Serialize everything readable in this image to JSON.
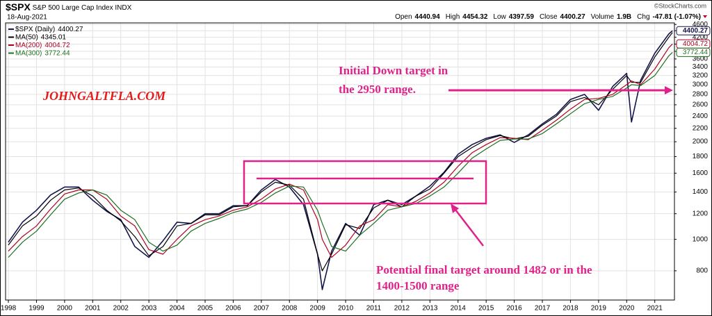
{
  "header": {
    "symbol": "$SPX",
    "name": "S&P 500 Large Cap Index",
    "exchange": "INDX",
    "date": "18-Aug-2021",
    "source": "©StockCharts.com",
    "quote": [
      {
        "label": "Open",
        "value": 4440.94
      },
      {
        "label": "High",
        "value": 4454.32
      },
      {
        "label": "Low",
        "value": 4397.59
      },
      {
        "label": "Close",
        "value": 4400.27
      },
      {
        "label": "Volume",
        "value": "1.9B"
      },
      {
        "label": "Chg",
        "value": "-47.81 (-1.07%)"
      }
    ]
  },
  "chart_data": {
    "type": "line",
    "ylog": true,
    "grid": true,
    "x": [
      1998,
      1998.5,
      1999,
      1999.5,
      2000,
      2000.5,
      2001,
      2001.5,
      2002,
      2002.5,
      2003,
      2003.5,
      2004,
      2004.5,
      2005,
      2005.5,
      2006,
      2006.5,
      2007,
      2007.5,
      2008,
      2008.5,
      2009,
      2009.17,
      2009.5,
      2010,
      2010.5,
      2011,
      2011.5,
      2012,
      2012.5,
      2013,
      2013.5,
      2014,
      2014.5,
      2015,
      2015.5,
      2016,
      2016.5,
      2017,
      2017.5,
      2018,
      2018.5,
      2019,
      2019.5,
      2020,
      2020.17,
      2020.5,
      2021,
      2021.5,
      2021.63
    ],
    "series": [
      {
        "name": "$SPX (Daily)",
        "color": "#14144e",
        "values": [
          980,
          1130,
          1230,
          1370,
          1450,
          1450,
          1320,
          1220,
          1150,
          950,
          880,
          990,
          1130,
          1120,
          1200,
          1200,
          1270,
          1270,
          1420,
          1530,
          1450,
          1280,
          900,
          700,
          920,
          1120,
          1030,
          1280,
          1320,
          1280,
          1360,
          1460,
          1610,
          1830,
          1960,
          2050,
          2100,
          1990,
          2100,
          2270,
          2430,
          2700,
          2800,
          2500,
          2960,
          3250,
          2300,
          3100,
          3750,
          4300,
          4400.27
        ]
      },
      {
        "name": "MA(50)",
        "color": "#000000",
        "values": [
          960,
          1100,
          1180,
          1320,
          1420,
          1440,
          1360,
          1230,
          1140,
          1020,
          890,
          950,
          1100,
          1120,
          1190,
          1190,
          1260,
          1270,
          1400,
          1500,
          1470,
          1330,
          900,
          800,
          900,
          1110,
          1080,
          1250,
          1320,
          1260,
          1360,
          1430,
          1600,
          1800,
          1920,
          2030,
          2090,
          2040,
          2080,
          2250,
          2400,
          2660,
          2740,
          2600,
          2900,
          3200,
          3050,
          3050,
          3650,
          4200,
          4345.01
        ]
      },
      {
        "name": "MA(200)",
        "color": "#b00020",
        "values": [
          920,
          1020,
          1100,
          1240,
          1380,
          1420,
          1420,
          1330,
          1180,
          1100,
          930,
          900,
          1000,
          1100,
          1150,
          1180,
          1230,
          1260,
          1330,
          1430,
          1480,
          1420,
          1150,
          1000,
          880,
          960,
          1100,
          1150,
          1280,
          1260,
          1310,
          1390,
          1500,
          1680,
          1850,
          1960,
          2060,
          2050,
          2030,
          2170,
          2330,
          2520,
          2700,
          2720,
          2800,
          3000,
          3080,
          3000,
          3350,
          3900,
          4004.72
        ]
      },
      {
        "name": "MA(300)",
        "color": "#1f6e1f",
        "values": [
          880,
          980,
          1060,
          1190,
          1330,
          1390,
          1420,
          1370,
          1230,
          1150,
          980,
          920,
          960,
          1060,
          1120,
          1160,
          1210,
          1240,
          1300,
          1390,
          1460,
          1450,
          1230,
          1120,
          950,
          920,
          1030,
          1120,
          1230,
          1260,
          1290,
          1360,
          1450,
          1600,
          1780,
          1900,
          2020,
          2040,
          2040,
          2120,
          2270,
          2440,
          2620,
          2700,
          2760,
          2930,
          3000,
          2980,
          3200,
          3680,
          3772.44
        ]
      }
    ],
    "xlim": [
      1997.9,
      2021.7
    ],
    "xticks": [
      1998,
      1999,
      2000,
      2001,
      2002,
      2003,
      2004,
      2005,
      2006,
      2007,
      2008,
      2009,
      2010,
      2011,
      2012,
      2013,
      2014,
      2015,
      2016,
      2017,
      2018,
      2019,
      2020,
      2021
    ],
    "ylim": [
      650,
      4650
    ],
    "yticks": [
      800,
      1000,
      1200,
      1400,
      1600,
      1800,
      2000,
      2200,
      2400,
      2600,
      2800,
      3000,
      3200,
      3400,
      3600,
      3800,
      4000,
      4200,
      4400,
      4600
    ],
    "annotations": {
      "site": "JOHNGALTFLA.COM",
      "upper": [
        "Initial Down target in",
        "the 2950 range."
      ],
      "lower": [
        "Potential final target around 1482 or in the",
        "1400-1500 range"
      ]
    }
  }
}
